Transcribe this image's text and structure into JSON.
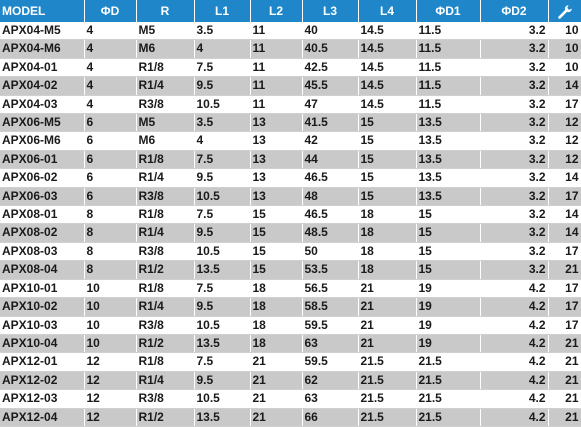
{
  "headers": {
    "model": "MODEL",
    "od": "ΦD",
    "r": "R",
    "l1": "L1",
    "l2": "L2",
    "l3": "L3",
    "l4": "L4",
    "od1": "ΦD1",
    "od2": "ΦD2",
    "wrench_icon": "wrench-icon"
  },
  "colors": {
    "header_bg": "#1f87c9",
    "header_text": "#ffffff",
    "stripe": "#c9c9c9"
  },
  "rows": [
    [
      "APX04-M5",
      "4",
      "M5",
      "3.5",
      "11",
      "40",
      "14.5",
      "11.5",
      "3.2",
      "10"
    ],
    [
      "APX04-M6",
      "4",
      "M6",
      "4",
      "11",
      "40.5",
      "14.5",
      "11.5",
      "3.2",
      "10"
    ],
    [
      "APX04-01",
      "4",
      "R1/8",
      "7.5",
      "11",
      "42.5",
      "14.5",
      "11.5",
      "3.2",
      "10"
    ],
    [
      "APX04-02",
      "4",
      "R1/4",
      "9.5",
      "11",
      "45.5",
      "14.5",
      "11.5",
      "3.2",
      "14"
    ],
    [
      "APX04-03",
      "4",
      "R3/8",
      "10.5",
      "11",
      "47",
      "14.5",
      "11.5",
      "3.2",
      "17"
    ],
    [
      "APX06-M5",
      "6",
      "M5",
      "3.5",
      "13",
      "41.5",
      "15",
      "13.5",
      "3.2",
      "12"
    ],
    [
      "APX06-M6",
      "6",
      "M6",
      "4",
      "13",
      "42",
      "15",
      "13.5",
      "3.2",
      "12"
    ],
    [
      "APX06-01",
      "6",
      "R1/8",
      "7.5",
      "13",
      "44",
      "15",
      "13.5",
      "3.2",
      "12"
    ],
    [
      "APX06-02",
      "6",
      "R1/4",
      "9.5",
      "13",
      "46.5",
      "15",
      "13.5",
      "3.2",
      "14"
    ],
    [
      "APX06-03",
      "6",
      "R3/8",
      "10.5",
      "13",
      "48",
      "15",
      "13.5",
      "3.2",
      "17"
    ],
    [
      "APX08-01",
      "8",
      "R1/8",
      "7.5",
      "15",
      "46.5",
      "18",
      "15",
      "3.2",
      "14"
    ],
    [
      "APX08-02",
      "8",
      "R1/4",
      "9.5",
      "15",
      "48.5",
      "18",
      "15",
      "3.2",
      "14"
    ],
    [
      "APX08-03",
      "8",
      "R3/8",
      "10.5",
      "15",
      "50",
      "18",
      "15",
      "3.2",
      "17"
    ],
    [
      "APX08-04",
      "8",
      "R1/2",
      "13.5",
      "15",
      "53.5",
      "18",
      "15",
      "3.2",
      "21"
    ],
    [
      "APX10-01",
      "10",
      "R1/8",
      "7.5",
      "18",
      "56.5",
      "21",
      "19",
      "4.2",
      "17"
    ],
    [
      "APX10-02",
      "10",
      "R1/4",
      "9.5",
      "18",
      "58.5",
      "21",
      "19",
      "4.2",
      "17"
    ],
    [
      "APX10-03",
      "10",
      "R3/8",
      "10.5",
      "18",
      "59.5",
      "21",
      "19",
      "4.2",
      "17"
    ],
    [
      "APX10-04",
      "10",
      "R1/2",
      "13.5",
      "18",
      "63",
      "21",
      "19",
      "4.2",
      "21"
    ],
    [
      "APX12-01",
      "12",
      "R1/8",
      "7.5",
      "21",
      "59.5",
      "21.5",
      "21.5",
      "4.2",
      "21"
    ],
    [
      "APX12-02",
      "12",
      "R1/4",
      "9.5",
      "21",
      "62",
      "21.5",
      "21.5",
      "4.2",
      "21"
    ],
    [
      "APX12-03",
      "12",
      "R3/8",
      "10.5",
      "21",
      "63",
      "21.5",
      "21.5",
      "4.2",
      "21"
    ],
    [
      "APX12-04",
      "12",
      "R1/2",
      "13.5",
      "21",
      "66",
      "21.5",
      "21.5",
      "4.2",
      "21"
    ]
  ]
}
